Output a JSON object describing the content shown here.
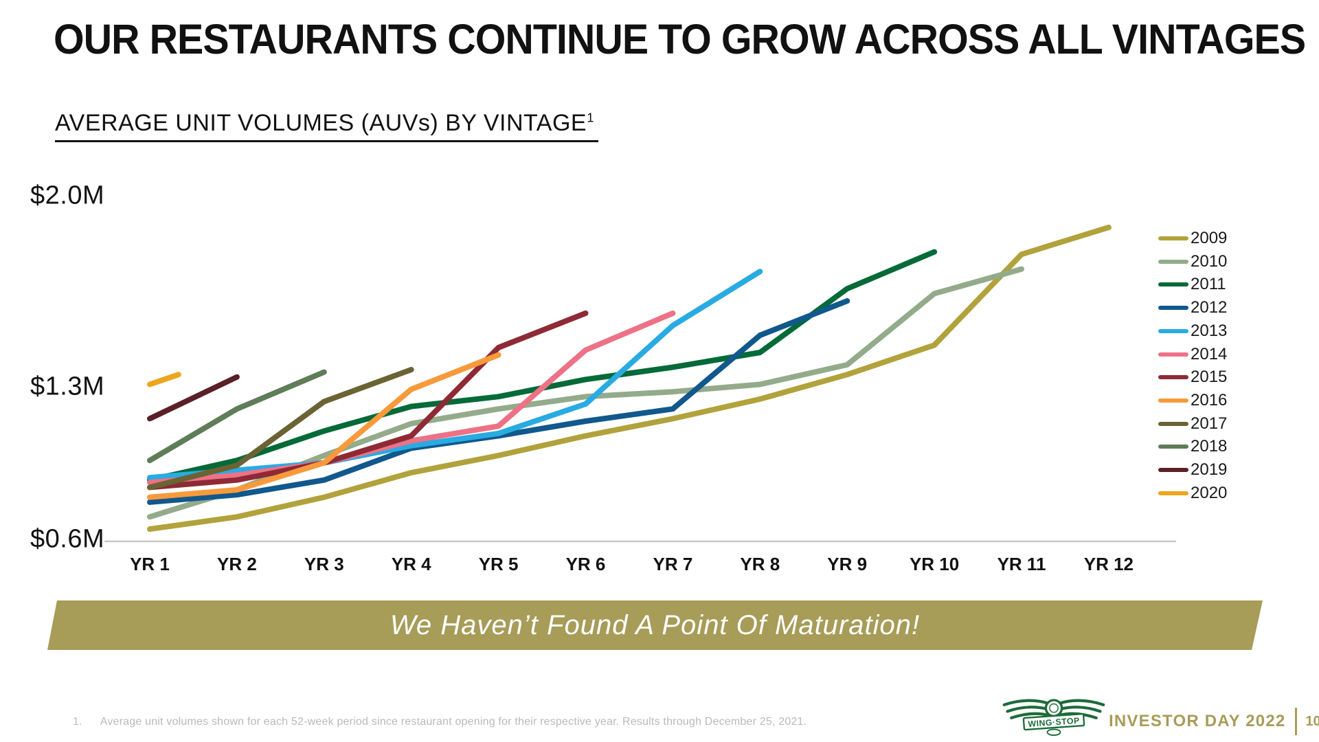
{
  "slide": {
    "title": "OUR RESTAURANTS CONTINUE TO GROW ACROSS ALL VINTAGES",
    "subtitle": "AVERAGE UNIT VOLUMES (AUVs) BY VINTAGE",
    "subtitle_sup": "1",
    "banner_text": "We Haven’t Found A Point Of Maturation!",
    "footnote_number": "1.",
    "footnote_text": "Average unit volumes shown for each 52-week period since restaurant opening for their respective year. Results through December 25, 2021.",
    "footer_brand": "INVESTOR DAY 2022",
    "page_number": "10",
    "logo_text": "WING·STOP"
  },
  "colors": {
    "banner_background": "#a79c58",
    "accent_gold": "#a79c58",
    "logo_green": "#1e6b3a",
    "axis_line": "#c8c8c8",
    "footnote_gray": "#b9b9b9",
    "text_black": "#111111"
  },
  "chart_data": {
    "type": "line",
    "title": "AVERAGE UNIT VOLUMES (AUVs) BY VINTAGE",
    "y_unit": "$M",
    "ylim": [
      0.6,
      2.0
    ],
    "y_ticks": [
      2.0,
      1.3,
      0.6
    ],
    "y_axis_labels": [
      "$2.0M",
      "$1.3M",
      "$0.6M"
    ],
    "x_categories": [
      "YR 1",
      "YR 2",
      "YR 3",
      "YR 4",
      "YR 5",
      "YR 6",
      "YR 7",
      "YR 8",
      "YR 9",
      "YR 10",
      "YR 11",
      "YR 12"
    ],
    "grid": false,
    "legend_position": "right",
    "series": [
      {
        "name": "2009",
        "color": "#b1a23c",
        "values": [
          0.65,
          0.7,
          0.78,
          0.88,
          0.95,
          1.03,
          1.1,
          1.18,
          1.28,
          1.4,
          1.77,
          1.88
        ]
      },
      {
        "name": "2010",
        "color": "#93ab8b",
        "values": [
          0.7,
          0.81,
          0.95,
          1.08,
          1.14,
          1.19,
          1.21,
          1.24,
          1.32,
          1.61,
          1.71
        ]
      },
      {
        "name": "2011",
        "color": "#046a38",
        "values": [
          0.85,
          0.93,
          1.05,
          1.15,
          1.19,
          1.26,
          1.31,
          1.37,
          1.63,
          1.78
        ]
      },
      {
        "name": "2012",
        "color": "#11588c",
        "values": [
          0.76,
          0.79,
          0.85,
          0.98,
          1.03,
          1.09,
          1.14,
          1.44,
          1.58
        ]
      },
      {
        "name": "2013",
        "color": "#29abe2",
        "values": [
          0.86,
          0.89,
          0.92,
          0.99,
          1.04,
          1.16,
          1.48,
          1.7
        ]
      },
      {
        "name": "2014",
        "color": "#ee7186",
        "values": [
          0.84,
          0.87,
          0.92,
          1.01,
          1.07,
          1.38,
          1.53
        ]
      },
      {
        "name": "2015",
        "color": "#8e2a35",
        "values": [
          0.82,
          0.85,
          0.92,
          1.03,
          1.39,
          1.53
        ]
      },
      {
        "name": "2016",
        "color": "#f89a3c",
        "values": [
          0.78,
          0.81,
          0.92,
          1.22,
          1.36
        ]
      },
      {
        "name": "2017",
        "color": "#6b6334",
        "values": [
          0.82,
          0.91,
          1.17,
          1.3
        ]
      },
      {
        "name": "2018",
        "color": "#5e7d58",
        "values": [
          0.93,
          1.14,
          1.29
        ]
      },
      {
        "name": "2019",
        "color": "#5a2027",
        "values": [
          1.1,
          1.27
        ]
      },
      {
        "name": "2020",
        "color": "#eca61d",
        "x": [
          1,
          1.33
        ],
        "values": [
          1.24,
          1.28
        ]
      }
    ]
  }
}
